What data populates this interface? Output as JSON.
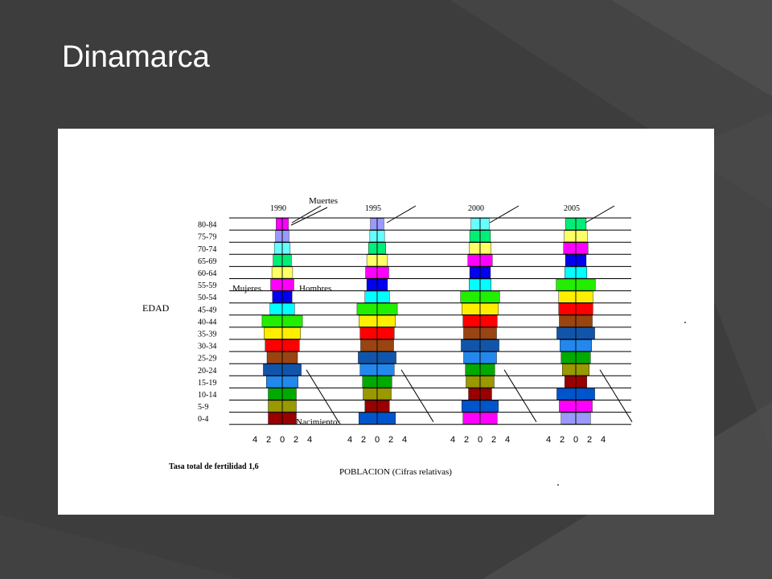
{
  "slide": {
    "title": "Dinamarca",
    "background_color": "#3d3d3d"
  },
  "chart_data": {
    "type": "bar",
    "subtype": "population-pyramid-series",
    "ylabel": "EDAD",
    "xlabel": "POBLACION (Cifras relativas)",
    "footnote": "Tasa total de fertilidad 1,6",
    "annotations": {
      "deaths": "Muertes",
      "births": "Nacimientos",
      "women": "Mujeres",
      "men": "Hombres"
    },
    "x_ticks": [
      "4",
      "2",
      "0",
      "2",
      "4"
    ],
    "age_groups": [
      "80-84",
      "75-79",
      "70-74",
      "65-69",
      "60-64",
      "55-59",
      "50-54",
      "45-49",
      "40-44",
      "35-39",
      "30-34",
      "25-29",
      "20-24",
      "15-19",
      "10-14",
      "5-9",
      "0-4"
    ],
    "cohort_colors": [
      "#ff00ff",
      "#9999ff",
      "#66ffff",
      "#00ee77",
      "#ffff66",
      "#ff00ff",
      "#0000ee",
      "#00ffff",
      "#22ee00",
      "#ffee00",
      "#ff0000",
      "#994411",
      "#1155aa",
      "#2288ee",
      "#00aa00",
      "#999900",
      "#990000",
      "#0055cc"
    ],
    "pyramids": [
      {
        "year": "1990",
        "color_offset": 0,
        "values": [
          1.0,
          1.1,
          1.3,
          1.5,
          1.7,
          1.9,
          1.6,
          2.0,
          3.3,
          3.0,
          2.8,
          2.5,
          3.1,
          2.6,
          2.3,
          2.3,
          2.3
        ]
      },
      {
        "year": "1995",
        "color_offset": 1,
        "values": [
          1.1,
          1.2,
          1.4,
          1.7,
          1.9,
          1.7,
          2.0,
          3.3,
          3.0,
          2.8,
          2.7,
          3.1,
          2.8,
          2.4,
          2.3,
          2.0,
          3.0
        ]
      },
      {
        "year": "2000",
        "color_offset": 2,
        "values": [
          1.5,
          1.7,
          1.8,
          2.0,
          1.7,
          1.8,
          3.2,
          3.0,
          2.8,
          2.7,
          3.1,
          2.7,
          2.4,
          2.3,
          1.9,
          3.0,
          2.8
        ]
      },
      {
        "year": "2005",
        "color_offset": 3,
        "values": [
          1.7,
          1.9,
          2.0,
          1.7,
          1.8,
          3.2,
          2.8,
          2.8,
          2.7,
          3.1,
          2.6,
          2.4,
          2.2,
          1.8,
          3.1,
          2.7,
          2.4
        ]
      }
    ],
    "xlim": [
      -4,
      4
    ],
    "grid": true
  }
}
